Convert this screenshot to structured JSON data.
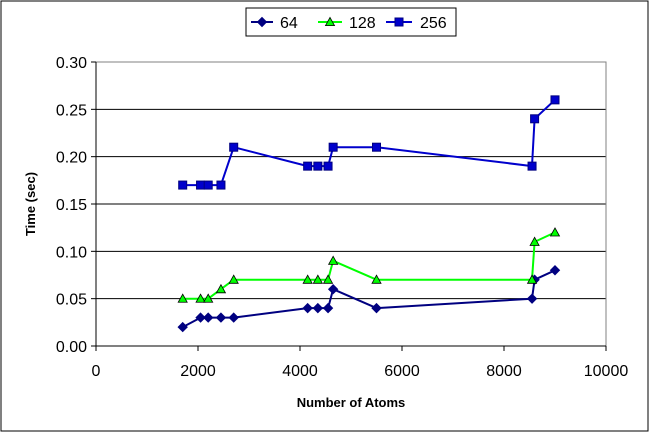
{
  "chart_data": {
    "type": "line",
    "title": "",
    "xlabel": "Number of Atoms",
    "ylabel": "Time (sec)",
    "xlim": [
      0,
      10000
    ],
    "ylim": [
      0,
      0.3
    ],
    "x_ticks": [
      "0",
      "2000",
      "4000",
      "6000",
      "8000",
      "10000"
    ],
    "y_ticks": [
      "0.00",
      "0.05",
      "0.10",
      "0.15",
      "0.20",
      "0.25",
      "0.30"
    ],
    "grid": "horizontal",
    "legend_position": "top",
    "series": [
      {
        "name": "64",
        "color": "#000080",
        "marker": "diamond",
        "points": [
          [
            1700,
            0.02
          ],
          [
            2050,
            0.03
          ],
          [
            2200,
            0.03
          ],
          [
            2450,
            0.03
          ],
          [
            2700,
            0.03
          ],
          [
            4150,
            0.04
          ],
          [
            4350,
            0.04
          ],
          [
            4550,
            0.04
          ],
          [
            4650,
            0.06
          ],
          [
            5500,
            0.04
          ],
          [
            8550,
            0.05
          ],
          [
            8600,
            0.07
          ],
          [
            9000,
            0.08
          ]
        ]
      },
      {
        "name": "128",
        "color": "#00FF00",
        "marker": "triangle",
        "points": [
          [
            1700,
            0.05
          ],
          [
            2050,
            0.05
          ],
          [
            2200,
            0.05
          ],
          [
            2450,
            0.06
          ],
          [
            2700,
            0.07
          ],
          [
            4150,
            0.07
          ],
          [
            4350,
            0.07
          ],
          [
            4550,
            0.07
          ],
          [
            4650,
            0.09
          ],
          [
            5500,
            0.07
          ],
          [
            8550,
            0.07
          ],
          [
            8600,
            0.11
          ],
          [
            9000,
            0.12
          ]
        ]
      },
      {
        "name": "256",
        "color": "#0000CC",
        "marker": "square",
        "points": [
          [
            1700,
            0.17
          ],
          [
            2050,
            0.17
          ],
          [
            2200,
            0.17
          ],
          [
            2450,
            0.17
          ],
          [
            2700,
            0.21
          ],
          [
            4150,
            0.19
          ],
          [
            4350,
            0.19
          ],
          [
            4550,
            0.19
          ],
          [
            4650,
            0.21
          ],
          [
            5500,
            0.21
          ],
          [
            8550,
            0.19
          ],
          [
            8600,
            0.24
          ],
          [
            9000,
            0.26
          ]
        ]
      }
    ]
  }
}
